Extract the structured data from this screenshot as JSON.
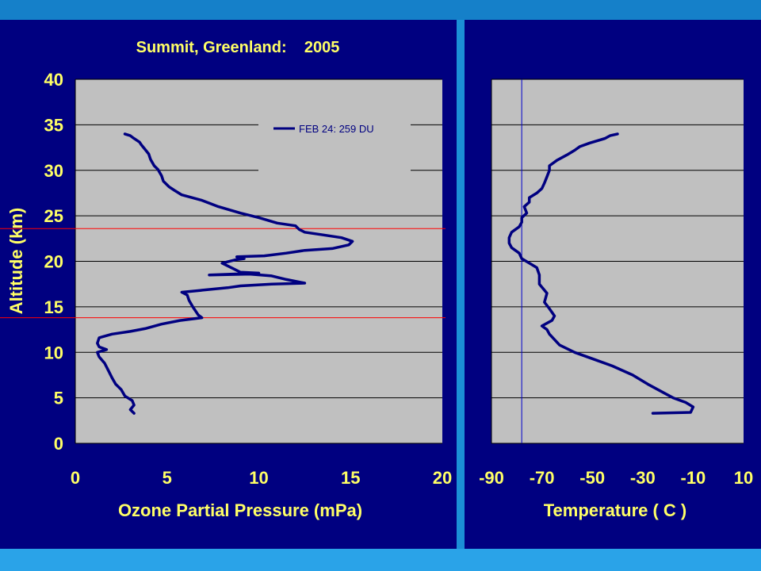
{
  "chart_data": [
    {
      "type": "line",
      "title": "Summit, Greenland:    2005",
      "xlabel": "Ozone Partial Pressure (mPa)",
      "ylabel": "Altitude (km)",
      "xlim": [
        0,
        20
      ],
      "ylim": [
        0,
        40
      ],
      "xticks": [
        "0",
        "5",
        "10",
        "15",
        "20"
      ],
      "yticks": [
        "0",
        "5",
        "10",
        "15",
        "20",
        "25",
        "30",
        "35",
        "40"
      ],
      "grid": "horizontal",
      "legend": "top-right",
      "reference_lines": [
        {
          "y": 23.6,
          "color": "#ff0000"
        },
        {
          "y": 13.8,
          "color": "#ff0000"
        }
      ],
      "series": [
        {
          "name": "FEB 24:  259 DU",
          "color": "#000080",
          "points": [
            [
              3.2,
              3.3
            ],
            [
              3.0,
              3.7
            ],
            [
              3.2,
              4.2
            ],
            [
              3.1,
              4.7
            ],
            [
              2.7,
              5.2
            ],
            [
              2.5,
              5.9
            ],
            [
              2.2,
              6.5
            ],
            [
              2.0,
              7.2
            ],
            [
              1.8,
              8.0
            ],
            [
              1.6,
              8.8
            ],
            [
              1.3,
              9.5
            ],
            [
              1.2,
              10.0
            ],
            [
              1.7,
              10.3
            ],
            [
              1.3,
              10.6
            ],
            [
              1.2,
              11.0
            ],
            [
              1.3,
              11.6
            ],
            [
              2.0,
              12.0
            ],
            [
              3.0,
              12.3
            ],
            [
              3.8,
              12.6
            ],
            [
              4.7,
              13.1
            ],
            [
              5.7,
              13.5
            ],
            [
              6.9,
              13.8
            ],
            [
              6.7,
              14.1
            ],
            [
              6.4,
              15.0
            ],
            [
              6.2,
              15.7
            ],
            [
              6.1,
              16.3
            ],
            [
              5.8,
              16.6
            ],
            [
              6.8,
              16.8
            ],
            [
              8.3,
              17.1
            ],
            [
              9.0,
              17.3
            ],
            [
              10.7,
              17.5
            ],
            [
              12.5,
              17.6
            ],
            [
              11.5,
              18.0
            ],
            [
              10.7,
              18.4
            ],
            [
              9.5,
              18.6
            ],
            [
              7.3,
              18.5
            ],
            [
              10.0,
              18.7
            ],
            [
              9.0,
              18.8
            ],
            [
              8.6,
              19.2
            ],
            [
              8.0,
              19.8
            ],
            [
              8.8,
              20.2
            ],
            [
              9.2,
              20.3
            ],
            [
              8.8,
              20.5
            ],
            [
              10.3,
              20.6
            ],
            [
              11.5,
              20.9
            ],
            [
              12.5,
              21.2
            ],
            [
              14.0,
              21.4
            ],
            [
              14.9,
              21.8
            ],
            [
              15.1,
              22.2
            ],
            [
              14.5,
              22.6
            ],
            [
              13.5,
              22.9
            ],
            [
              12.5,
              23.2
            ],
            [
              12.2,
              23.5
            ],
            [
              12.0,
              23.9
            ],
            [
              11.0,
              24.2
            ],
            [
              10.0,
              24.8
            ],
            [
              9.0,
              25.3
            ],
            [
              7.8,
              26.0
            ],
            [
              6.9,
              26.7
            ],
            [
              5.8,
              27.3
            ],
            [
              5.4,
              27.8
            ],
            [
              5.1,
              28.2
            ],
            [
              4.8,
              28.8
            ],
            [
              4.7,
              29.4
            ],
            [
              4.5,
              30.1
            ],
            [
              4.3,
              30.5
            ],
            [
              4.1,
              31.2
            ],
            [
              4.0,
              31.8
            ],
            [
              3.8,
              32.3
            ],
            [
              3.6,
              32.8
            ],
            [
              3.5,
              33.1
            ],
            [
              3.2,
              33.5
            ],
            [
              3.0,
              33.8
            ],
            [
              2.7,
              34.0
            ]
          ]
        }
      ]
    },
    {
      "type": "line",
      "xlabel": "Temperature ( C )",
      "xlim": [
        -90,
        10
      ],
      "ylim": [
        0,
        40
      ],
      "xticks": [
        "-90",
        "-70",
        "-50",
        "-30",
        "-10",
        "10"
      ],
      "grid": "horizontal",
      "reference_lines": [
        {
          "x": -78,
          "color": "#0000cc"
        }
      ],
      "series": [
        {
          "color": "#000080",
          "points": [
            [
              -26,
              3.3
            ],
            [
              -11,
              3.4
            ],
            [
              -10,
              4.0
            ],
            [
              -13,
              4.5
            ],
            [
              -18,
              5.0
            ],
            [
              -22,
              5.6
            ],
            [
              -28,
              6.5
            ],
            [
              -34,
              7.5
            ],
            [
              -42,
              8.5
            ],
            [
              -50,
              9.3
            ],
            [
              -57,
              10.0
            ],
            [
              -63,
              10.8
            ],
            [
              -67,
              12.0
            ],
            [
              -68,
              12.5
            ],
            [
              -70,
              12.9
            ],
            [
              -66,
              13.5
            ],
            [
              -65,
              14.0
            ],
            [
              -67,
              14.8
            ],
            [
              -69,
              15.5
            ],
            [
              -68,
              16.5
            ],
            [
              -71,
              17.5
            ],
            [
              -71,
              18.5
            ],
            [
              -72,
              19.3
            ],
            [
              -75,
              19.8
            ],
            [
              -78,
              20.3
            ],
            [
              -79,
              20.9
            ],
            [
              -82,
              21.5
            ],
            [
              -83,
              22.0
            ],
            [
              -83,
              22.6
            ],
            [
              -82,
              23.2
            ],
            [
              -79,
              23.8
            ],
            [
              -78,
              24.3
            ],
            [
              -78,
              24.8
            ],
            [
              -76,
              25.3
            ],
            [
              -77,
              26.0
            ],
            [
              -75,
              26.5
            ],
            [
              -75,
              27.0
            ],
            [
              -72,
              27.5
            ],
            [
              -70,
              28.0
            ],
            [
              -69,
              28.6
            ],
            [
              -68,
              29.3
            ],
            [
              -67,
              30.0
            ],
            [
              -67,
              30.5
            ],
            [
              -64,
              31.1
            ],
            [
              -60,
              31.7
            ],
            [
              -57,
              32.2
            ],
            [
              -55,
              32.6
            ],
            [
              -51,
              33.0
            ],
            [
              -45,
              33.5
            ],
            [
              -43,
              33.8
            ],
            [
              -40,
              34.0
            ]
          ]
        }
      ]
    }
  ]
}
